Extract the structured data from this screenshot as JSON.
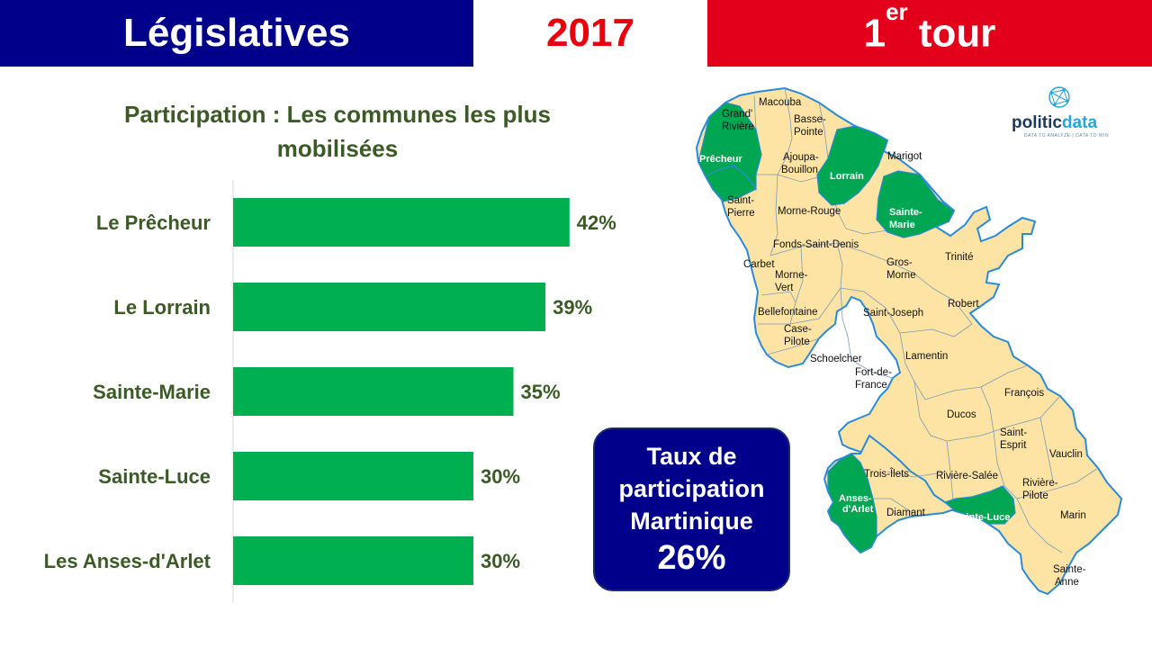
{
  "header": {
    "left": "Législatives",
    "middle": "2017",
    "right_main": "1",
    "right_sup": "er",
    "right_rest": " tour"
  },
  "colors": {
    "blue": "#00008b",
    "red": "#e2001a",
    "bar": "#00b050",
    "text_green": "#3b5a26",
    "map_land": "#fde4a5",
    "map_highlight": "#00a651",
    "map_border": "#2a8ad8"
  },
  "chart_data": {
    "type": "bar",
    "orientation": "horizontal",
    "title": "Participation : Les communes les plus mobilisées",
    "categories": [
      "Le Prêcheur",
      "Le Lorrain",
      "Sainte-Marie",
      "Sainte-Luce",
      "Les Anses-d'Arlet"
    ],
    "values": [
      42,
      39,
      35,
      30,
      30
    ],
    "value_labels": [
      "42%",
      "39%",
      "35%",
      "30%",
      "30%"
    ],
    "unit": "%",
    "grid": false,
    "legend": "none"
  },
  "info_box": {
    "line1": "Taux de",
    "line2": "participation",
    "line3": "Martinique",
    "value": "26%"
  },
  "map": {
    "communes": [
      "Macouba",
      "Grand' Rivière",
      "Basse-Pointe",
      "Prêcheur",
      "Ajoupa-Bouillon",
      "Lorrain",
      "Marigot",
      "Saint-Pierre",
      "Morne-Rouge",
      "Sainte-Marie",
      "Fonds-Saint-Denis",
      "Trinité",
      "Carbet",
      "Gros-Morne",
      "Morne-Vert",
      "Robert",
      "Bellefontaine",
      "Saint-Joseph",
      "Case-Pilote",
      "Schoelcher",
      "Lamentin",
      "Fort-de-France",
      "François",
      "Ducos",
      "Saint-Esprit",
      "Trois-Îlets",
      "Rivière-Salée",
      "Vauclin",
      "Anses-d'Arlet",
      "Rivière-Pilote",
      "Diamant",
      "Sainte-Luce",
      "Marin",
      "Sainte-Anne"
    ]
  },
  "logo": {
    "name": "politicdata",
    "tagline": "DATA TO ANALYZE | DATA TO WIN"
  }
}
